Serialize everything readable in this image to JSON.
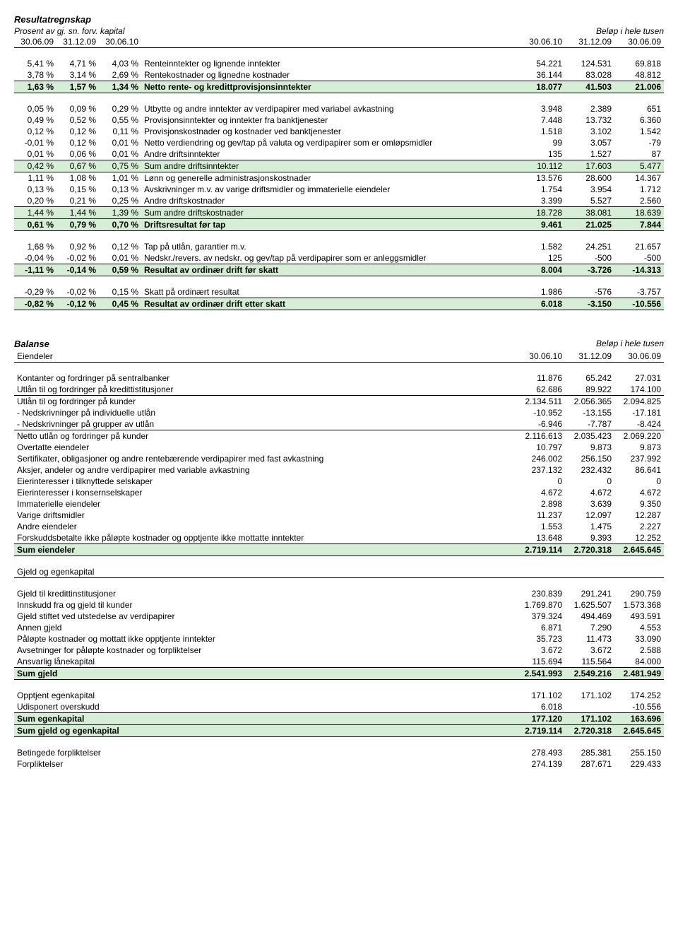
{
  "income": {
    "title": "Resultatregnskap",
    "left_subtitle": "Prosent av gj. sn. forv. kapital",
    "right_subtitle": "Beløp i hele tusen",
    "headers_left": [
      "30.06.09",
      "31.12.09",
      "30.06.10"
    ],
    "headers_right": [
      "30.06.10",
      "31.12.09",
      "30.06.09"
    ],
    "rows": [
      {
        "type": "spacer"
      },
      {
        "p": [
          "5,41 %",
          "4,71 %",
          "4,03 %"
        ],
        "d": "Renteinntekter og lignende inntekter",
        "v": [
          "54.221",
          "124.531",
          "69.818"
        ]
      },
      {
        "p": [
          "3,78 %",
          "3,14 %",
          "2,69 %"
        ],
        "d": "Rentekostnader og lignedne kostnader",
        "v": [
          "36.144",
          "83.028",
          "48.812"
        ]
      },
      {
        "p": [
          "1,63 %",
          "1,57 %",
          "1,34 %"
        ],
        "d": "Netto rente- og kredittprovisjonsinntekter",
        "v": [
          "18.077",
          "41.503",
          "21.006"
        ],
        "hl": true,
        "bold": true,
        "bt": true,
        "bb": true
      },
      {
        "type": "spacer"
      },
      {
        "p": [
          "0,05 %",
          "0,09 %",
          "0,29 %"
        ],
        "d": "Utbytte og andre inntekter av verdipapirer med variabel avkastning",
        "v": [
          "3.948",
          "2.389",
          "651"
        ]
      },
      {
        "p": [
          "0,49 %",
          "0,52 %",
          "0,55 %"
        ],
        "d": "Provisjonsinntekter og inntekter fra banktjenester",
        "v": [
          "7.448",
          "13.732",
          "6.360"
        ]
      },
      {
        "p": [
          "0,12 %",
          "0,12 %",
          "0,11 %"
        ],
        "d": "Provisjonskostnader og kostnader ved banktjenester",
        "v": [
          "1.518",
          "3.102",
          "1.542"
        ]
      },
      {
        "p": [
          "-0,01 %",
          "0,12 %",
          "0,01 %"
        ],
        "d": "Netto verdiendring og gev/tap på valuta og verdipapirer som er omløpsmidler",
        "v": [
          "99",
          "3.057",
          "-79"
        ]
      },
      {
        "p": [
          "0,01 %",
          "0,06 %",
          "0,01 %"
        ],
        "d": "Andre driftsinntekter",
        "v": [
          "135",
          "1.527",
          "87"
        ]
      },
      {
        "p": [
          "0,42 %",
          "0,67 %",
          "0,75 %"
        ],
        "d": "Sum andre driftsinntekter",
        "v": [
          "10.112",
          "17.603",
          "5.477"
        ],
        "hl": true,
        "bt": true,
        "bb": true
      },
      {
        "p": [
          "1,11 %",
          "1,08 %",
          "1,01 %"
        ],
        "d": "Lønn og generelle administrasjonskostnader",
        "v": [
          "13.576",
          "28.600",
          "14.367"
        ]
      },
      {
        "p": [
          "0,13 %",
          "0,15 %",
          "0,13 %"
        ],
        "d": "Avskrivninger m.v. av varige driftsmidler og immaterielle eiendeler",
        "v": [
          "1.754",
          "3.954",
          "1.712"
        ]
      },
      {
        "p": [
          "0,20 %",
          "0,21 %",
          "0,25 %"
        ],
        "d": "Andre driftskostnader",
        "v": [
          "3.399",
          "5.527",
          "2.560"
        ]
      },
      {
        "p": [
          "1,44 %",
          "1,44 %",
          "1,39 %"
        ],
        "d": "Sum andre driftskostnader",
        "v": [
          "18.728",
          "38.081",
          "18.639"
        ],
        "hl": true,
        "bt": true,
        "bb": true
      },
      {
        "p": [
          "0,61 %",
          "0,79 %",
          "0,70 %"
        ],
        "d": "Driftsresultat før tap",
        "v": [
          "9.461",
          "21.025",
          "7.844"
        ],
        "hl": true,
        "bold": true,
        "bb": true
      },
      {
        "type": "spacer"
      },
      {
        "p": [
          "1,68 %",
          "0,92 %",
          "0,12 %"
        ],
        "d": "Tap på utlån, garantier m.v.",
        "v": [
          "1.582",
          "24.251",
          "21.657"
        ]
      },
      {
        "p": [
          "-0,04 %",
          "-0,02 %",
          "0,01 %"
        ],
        "d": "Nedskr./revers. av nedskr. og gev/tap på verdipapirer som er anleggsmidler",
        "v": [
          "125",
          "-500",
          "-500"
        ]
      },
      {
        "p": [
          "-1,11 %",
          "-0,14 %",
          "0,59 %"
        ],
        "d": "Resultat av ordinær drift før skatt",
        "v": [
          "8.004",
          "-3.726",
          "-14.313"
        ],
        "hl": true,
        "bold": true,
        "bt": true,
        "bb": true
      },
      {
        "type": "spacer"
      },
      {
        "p": [
          "-0,29 %",
          "-0,02 %",
          "0,15 %"
        ],
        "d": "Skatt på ordinært resultat",
        "v": [
          "1.986",
          "-576",
          "-3.757"
        ]
      },
      {
        "p": [
          "-0,82 %",
          "-0,12 %",
          "0,45 %"
        ],
        "d": "Resultat av ordinær drift etter skatt",
        "v": [
          "6.018",
          "-3.150",
          "-10.556"
        ],
        "hl": true,
        "bold": true,
        "bt": true,
        "bb": true
      }
    ]
  },
  "balance": {
    "title": "Balanse",
    "right_subtitle": "Beløp i hele tusen",
    "assets_label": "Eiendeler",
    "headers": [
      "30.06.10",
      "31.12.09",
      "30.06.09"
    ],
    "rows": [
      {
        "type": "spacer"
      },
      {
        "d": "Kontanter og fordringer på sentralbanker",
        "v": [
          "11.876",
          "65.242",
          "27.031"
        ]
      },
      {
        "d": "Utlån til og fordringer på kredittistitusjoner",
        "v": [
          "62.686",
          "89.922",
          "174.100"
        ],
        "bb": true
      },
      {
        "d": "Utlån til og fordringer på kunder",
        "v": [
          "2.134.511",
          "2.056.365",
          "2.094.825"
        ]
      },
      {
        "d": "- Nedskrivninger på individuelle utlån",
        "v": [
          "-10.952",
          "-13.155",
          "-17.181"
        ]
      },
      {
        "d": "- Nedskrivninger på grupper av utlån",
        "v": [
          "-6.946",
          "-7.787",
          "-8.424"
        ],
        "bb": true
      },
      {
        "d": "Netto utlån og fordringer på kunder",
        "v": [
          "2.116.613",
          "2.035.423",
          "2.069.220"
        ]
      },
      {
        "d": "Overtatte eiendeler",
        "v": [
          "10.797",
          "9.873",
          "9.873"
        ]
      },
      {
        "d": "Sertifikater, obligasjoner og andre rentebærende verdipapirer med fast avkastning",
        "v": [
          "246.002",
          "256.150",
          "237.992"
        ]
      },
      {
        "d": "Aksjer, andeler og andre verdipapirer med variable avkastning",
        "v": [
          "237.132",
          "232.432",
          "86.641"
        ]
      },
      {
        "d": "Eierinteresser i tilknyttede selskaper",
        "v": [
          "0",
          "0",
          "0"
        ]
      },
      {
        "d": "Eierinteresser i konsernselskaper",
        "v": [
          "4.672",
          "4.672",
          "4.672"
        ]
      },
      {
        "d": "Immaterielle eiendeler",
        "v": [
          "2.898",
          "3.639",
          "9.350"
        ]
      },
      {
        "d": "Varige driftsmidler",
        "v": [
          "11.237",
          "12.097",
          "12.287"
        ]
      },
      {
        "d": "Andre eiendeler",
        "v": [
          "1.553",
          "1.475",
          "2.227"
        ]
      },
      {
        "d": "Forskuddsbetalte ikke påløpte kostnader og opptjente ikke mottatte inntekter",
        "v": [
          "13.648",
          "9.393",
          "12.252"
        ]
      },
      {
        "d": "Sum eiendeler",
        "v": [
          "2.719.114",
          "2.720.318",
          "2.645.645"
        ],
        "hl": true,
        "bold": true,
        "bt": true,
        "bb": true
      },
      {
        "type": "spacer"
      },
      {
        "d": "Gjeld og egenkapital",
        "v": [
          "",
          "",
          ""
        ],
        "bb": true
      },
      {
        "type": "spacer"
      },
      {
        "d": "Gjeld til kredittinstitusjoner",
        "v": [
          "230.839",
          "291.241",
          "290.759"
        ]
      },
      {
        "d": "Innskudd fra og gjeld til kunder",
        "v": [
          "1.769.870",
          "1.625.507",
          "1.573.368"
        ]
      },
      {
        "d": "Gjeld stiftet ved utstedelse av verdipapirer",
        "v": [
          "379.324",
          "494.469",
          "493.591"
        ]
      },
      {
        "d": "Annen gjeld",
        "v": [
          "6.871",
          "7.290",
          "4.553"
        ]
      },
      {
        "d": "Påløpte kostnader og mottatt ikke opptjente inntekter",
        "v": [
          "35.723",
          "11.473",
          "33.090"
        ]
      },
      {
        "d": "Avsetninger for påløpte kostnader og forpliktelser",
        "v": [
          "3.672",
          "3.672",
          "2.588"
        ]
      },
      {
        "d": "Ansvarlig lånekapital",
        "v": [
          "115.694",
          "115.564",
          "84.000"
        ]
      },
      {
        "d": "Sum gjeld",
        "v": [
          "2.541.993",
          "2.549.216",
          "2.481.949"
        ],
        "hl": true,
        "bold": true,
        "bt": true,
        "bb": true
      },
      {
        "type": "spacer"
      },
      {
        "d": "Opptjent egenkapital",
        "v": [
          "171.102",
          "171.102",
          "174.252"
        ]
      },
      {
        "d": "Udisponert overskudd",
        "v": [
          "6.018",
          "",
          "-10.556"
        ]
      },
      {
        "d": "Sum egenkapital",
        "v": [
          "177.120",
          "171.102",
          "163.696"
        ],
        "hl": true,
        "bold": true,
        "bt": true,
        "bb": true
      },
      {
        "d": "Sum gjeld og egenkapital",
        "v": [
          "2.719.114",
          "2.720.318",
          "2.645.645"
        ],
        "hl": true,
        "bold": true,
        "bb": true
      },
      {
        "type": "spacer"
      },
      {
        "d": "Betingede forpliktelser",
        "v": [
          "278.493",
          "285.381",
          "255.150"
        ]
      },
      {
        "d": "Forpliktelser",
        "v": [
          "274.139",
          "287.671",
          "229.433"
        ]
      }
    ]
  },
  "colors": {
    "highlight": "#d5eed5",
    "text": "#000000",
    "bg": "#ffffff",
    "border": "#000000"
  }
}
